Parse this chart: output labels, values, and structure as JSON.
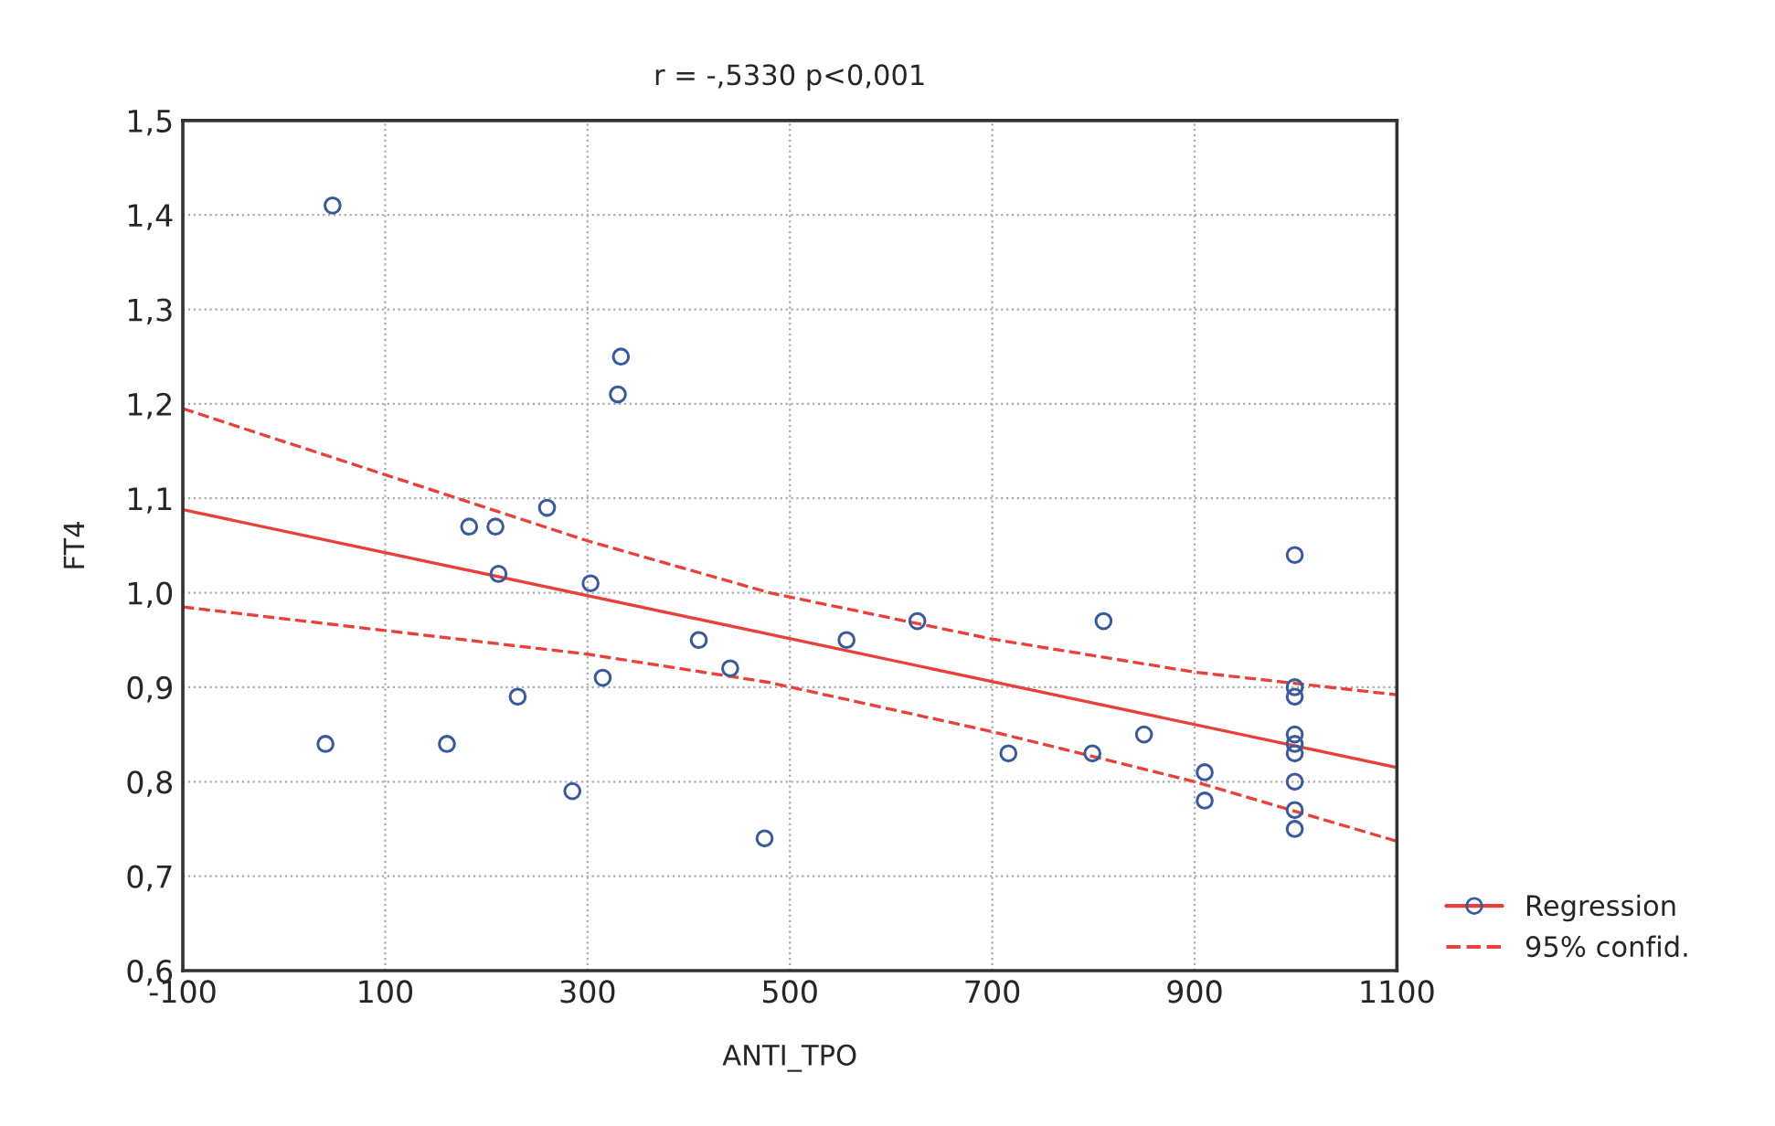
{
  "chart_data": {
    "type": "scatter",
    "title": "r = -,5330 p<0,001",
    "xlabel": "ANTI_TPO",
    "ylabel": "FT4",
    "series": [
      {
        "color": "#3a5a9c",
        "marker": "circle",
        "x": [
          41,
          48,
          161,
          183,
          209,
          212,
          231,
          260,
          285,
          303,
          315,
          330,
          333,
          410,
          441,
          475,
          556,
          626,
          716,
          799,
          810,
          850,
          910,
          910,
          999,
          999,
          999,
          999,
          999,
          999,
          999,
          999,
          999
        ],
        "values": [
          0.84,
          1.41,
          0.84,
          1.07,
          1.07,
          1.02,
          0.89,
          1.09,
          0.79,
          1.01,
          0.91,
          1.21,
          1.25,
          0.95,
          0.92,
          0.74,
          0.95,
          0.97,
          0.83,
          0.83,
          0.97,
          0.85,
          0.81,
          0.78,
          1.04,
          0.9,
          0.89,
          0.85,
          0.84,
          0.83,
          0.8,
          0.77,
          0.75
        ]
      },
      {
        "type": "line",
        "name": "Regression",
        "color": "#e8413c",
        "line_style": "solid",
        "marker": "none",
        "x": [
          -100,
          1100
        ],
        "values": [
          1.088,
          0.815
        ]
      },
      {
        "type": "line",
        "name": "95% confid.",
        "color": "#e8413c",
        "line_style": "dashed",
        "marker": "none",
        "x": [
          -100,
          100,
          300,
          480,
          700,
          900,
          1100
        ],
        "values": [
          1.195,
          1.125,
          1.055,
          1.0,
          0.951,
          0.916,
          0.892
        ]
      },
      {
        "type": "line",
        "color": "#e8413c",
        "line_style": "dashed",
        "marker": "none",
        "x": [
          -100,
          100,
          300,
          480,
          700,
          900,
          1100
        ],
        "values": [
          0.985,
          0.96,
          0.935,
          0.905,
          0.853,
          0.8,
          0.737
        ]
      }
    ],
    "xlim": [
      -100,
      1100
    ],
    "xticks": [
      -100,
      100,
      300,
      500,
      700,
      900,
      1100
    ],
    "ylim": [
      0.6,
      1.5
    ],
    "yticks": [
      {
        "value": 0.6,
        "label": "0,6"
      },
      {
        "value": 0.7,
        "label": "0,7"
      },
      {
        "value": 0.8,
        "label": "0,8"
      },
      {
        "value": 0.9,
        "label": "0,9"
      },
      {
        "value": 1.0,
        "label": "1,0"
      },
      {
        "value": 1.1,
        "label": "1,1"
      },
      {
        "value": 1.2,
        "label": "1,2"
      },
      {
        "value": 1.3,
        "label": "1,3"
      },
      {
        "value": 1.4,
        "label": "1,4"
      },
      {
        "value": 1.5,
        "label": "1,5"
      }
    ],
    "grid": true,
    "legend": "bottom right"
  }
}
